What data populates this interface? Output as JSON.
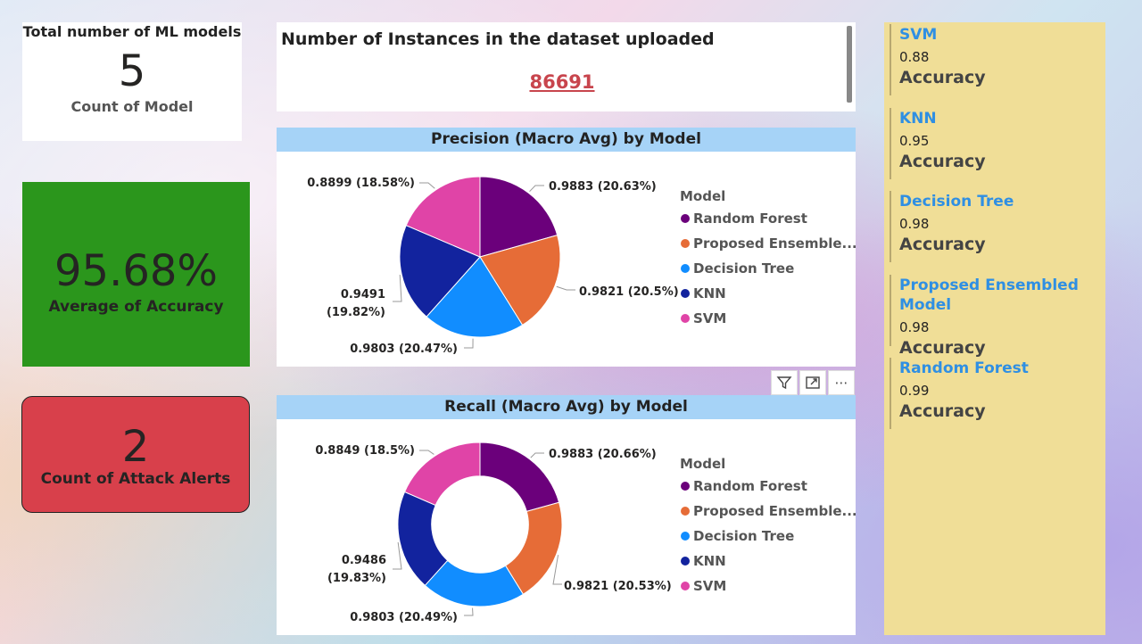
{
  "cards": {
    "models": {
      "title": "Total number of ML models",
      "value": "5",
      "label": "Count of Model"
    },
    "accuracy": {
      "value": "95.68%",
      "label": "Average of Accuracy",
      "color": "#2b961c"
    },
    "alerts": {
      "value": "2",
      "label": "Count of Attack Alerts",
      "color": "#d8404b"
    },
    "instances": {
      "title": "Number of Instances in the dataset uploaded",
      "value": "86691"
    }
  },
  "visual_tools": {
    "filter_icon": "filter-icon",
    "focus_icon": "focus-mode-icon",
    "more_icon": "more-options-icon",
    "more_label": "⋯"
  },
  "legend_title": "Model",
  "chart_data": [
    {
      "type": "pie",
      "title": "Precision (Macro Avg) by Model",
      "legend_title": "Model",
      "categories": [
        "Random Forest",
        "Proposed Ensemble...",
        "Decision Tree",
        "KNN",
        "SVM"
      ],
      "values": [
        0.9883,
        0.9821,
        0.9803,
        0.9491,
        0.8899
      ],
      "percents": [
        "20.63%",
        "20.5%",
        "20.47%",
        "19.82%",
        "18.58%"
      ],
      "colors": [
        "#6b007b",
        "#e66c37",
        "#118dff",
        "#12239e",
        "#e044a7"
      ]
    },
    {
      "type": "donut",
      "title": "Recall (Macro Avg) by Model",
      "legend_title": "Model",
      "categories": [
        "Random Forest",
        "Proposed Ensemble...",
        "Decision Tree",
        "KNN",
        "SVM"
      ],
      "values": [
        0.9883,
        0.9821,
        0.9803,
        0.9486,
        0.8849
      ],
      "percents": [
        "20.66%",
        "20.53%",
        "20.49%",
        "19.83%",
        "18.5%"
      ],
      "colors": [
        "#6b007b",
        "#e66c37",
        "#118dff",
        "#12239e",
        "#e044a7"
      ]
    }
  ],
  "model_accuracy": [
    {
      "name": "SVM",
      "value": "0.88",
      "label": "Accuracy"
    },
    {
      "name": "KNN",
      "value": "0.95",
      "label": "Accuracy"
    },
    {
      "name": "Decision Tree",
      "value": "0.98",
      "label": "Accuracy"
    },
    {
      "name": "Proposed Ensembled Model",
      "value": "0.98",
      "label": "Accuracy"
    },
    {
      "name": "Random Forest",
      "value": "0.99",
      "label": "Accuracy"
    }
  ]
}
